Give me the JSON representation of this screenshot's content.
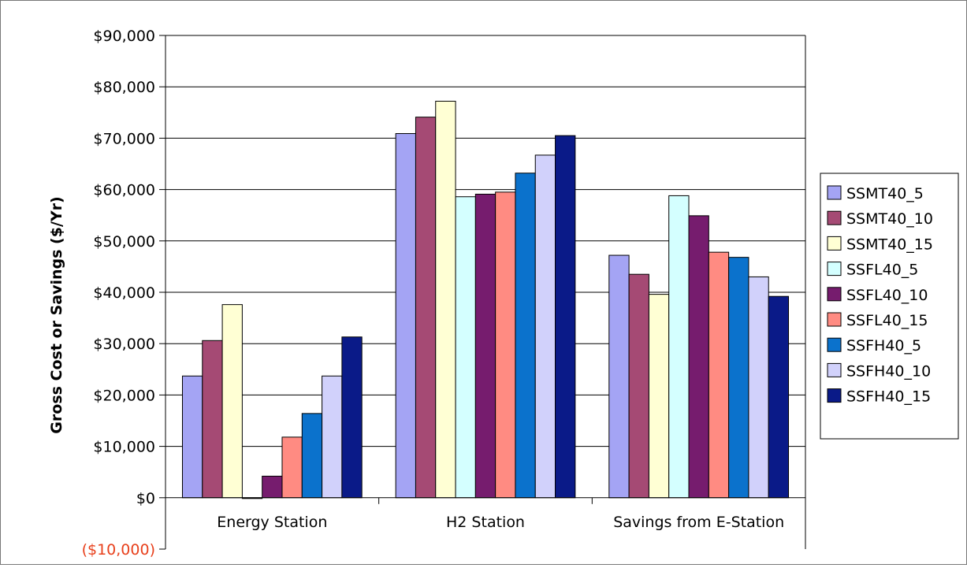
{
  "chart_data": {
    "type": "bar",
    "ylabel": "Gross Cost or Savings ($/Yr)",
    "ylim": [
      -10000,
      90000
    ],
    "y_ticks": [
      {
        "value": 90000,
        "label": "$90,000"
      },
      {
        "value": 80000,
        "label": "$80,000"
      },
      {
        "value": 70000,
        "label": "$70,000"
      },
      {
        "value": 60000,
        "label": "$60,000"
      },
      {
        "value": 50000,
        "label": "$50,000"
      },
      {
        "value": 40000,
        "label": "$40,000"
      },
      {
        "value": 30000,
        "label": "$30,000"
      },
      {
        "value": 20000,
        "label": "$20,000"
      },
      {
        "value": 10000,
        "label": "$10,000"
      },
      {
        "value": 0,
        "label": "$0"
      },
      {
        "value": -10000,
        "label": "($10,000)"
      }
    ],
    "negative_tick_color": "#e8401c",
    "categories": [
      "Energy Station",
      "H2 Station",
      "Savings from E-Station"
    ],
    "grid": true,
    "legend_position": "right",
    "series": [
      {
        "name": "SSMT40_5",
        "color": "#a4a4f4",
        "values": [
          23700,
          70900,
          47200
        ]
      },
      {
        "name": "SSMT40_10",
        "color": "#a54a74",
        "values": [
          30600,
          74100,
          43500
        ]
      },
      {
        "name": "SSMT40_15",
        "color": "#ffffd4",
        "values": [
          37600,
          77200,
          39600
        ]
      },
      {
        "name": "SSFL40_5",
        "color": "#d4ffff",
        "values": [
          -100,
          58600,
          58800
        ]
      },
      {
        "name": "SSFL40_10",
        "color": "#761c6e",
        "values": [
          4200,
          59100,
          54900
        ]
      },
      {
        "name": "SSFL40_15",
        "color": "#ff8b82",
        "values": [
          11800,
          59500,
          47800
        ]
      },
      {
        "name": "SSFH40_5",
        "color": "#0b72cc",
        "values": [
          16400,
          63200,
          46800
        ]
      },
      {
        "name": "SSFH40_10",
        "color": "#d1d1fb",
        "values": [
          23700,
          66700,
          43000
        ]
      },
      {
        "name": "SSFH40_15",
        "color": "#0a1a88",
        "values": [
          31300,
          70500,
          39200
        ]
      }
    ]
  }
}
